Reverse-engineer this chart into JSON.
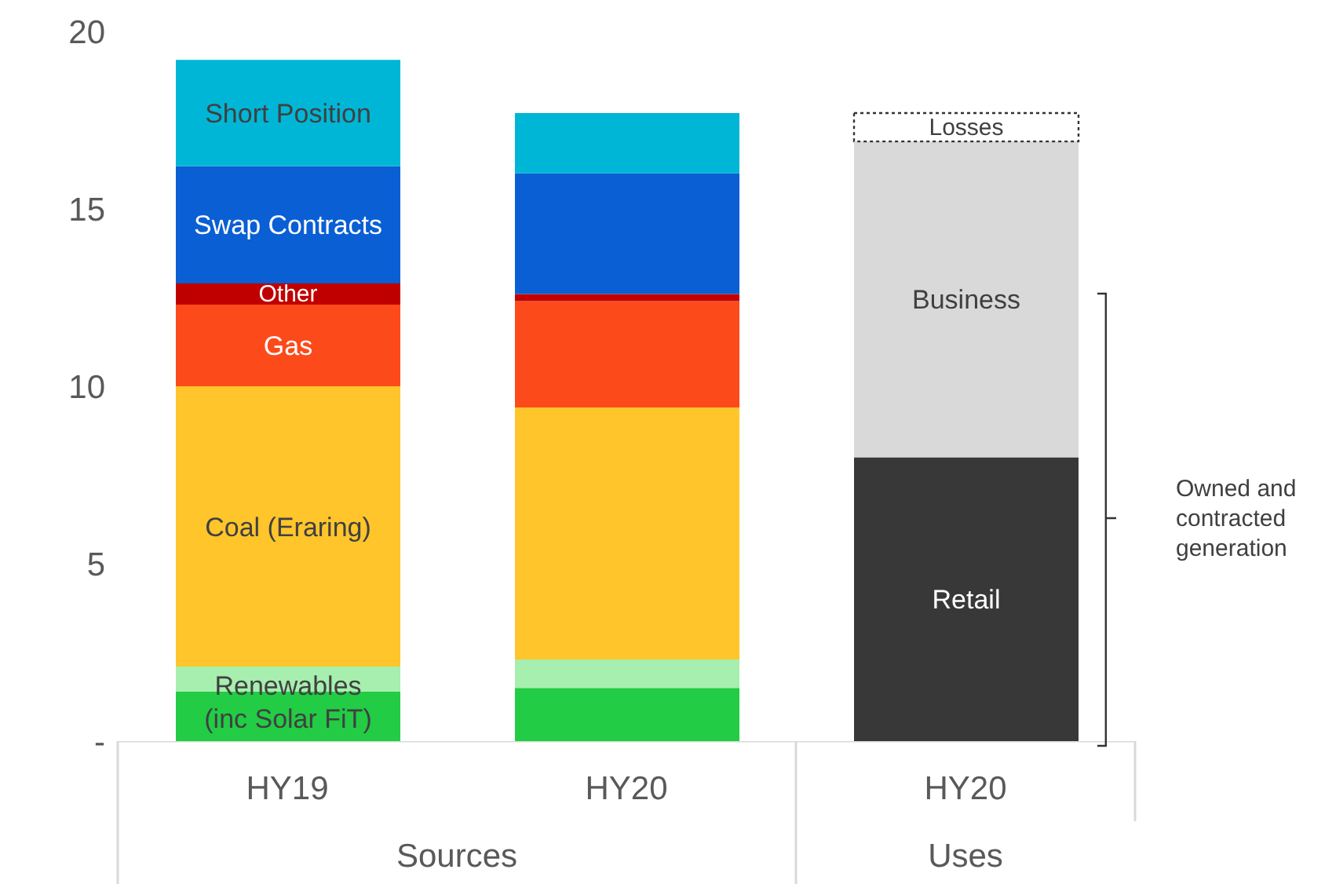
{
  "chart_data": {
    "type": "bar",
    "stacked": true,
    "categories": [
      "HY19",
      "HY20",
      "HY20"
    ],
    "ylim": [
      0,
      20
    ],
    "yticks": [
      {
        "value": 0,
        "label": "-"
      },
      5,
      10,
      15,
      20
    ],
    "series": [
      {
        "name": "Renewables (inc Solar FiT)",
        "color": "#22cc44",
        "values": [
          1.4,
          1.5,
          null
        ]
      },
      {
        "color": "#a6efae",
        "values": [
          0.7,
          0.8,
          null
        ]
      },
      {
        "name": "Coal (Eraring)",
        "color": "#ffc52b",
        "values": [
          7.9,
          7.1,
          null
        ]
      },
      {
        "name": "Gas",
        "color": "#fc4a1a",
        "values": [
          2.3,
          3.0,
          null
        ]
      },
      {
        "name": "Other",
        "color": "#c00000",
        "values": [
          0.6,
          0.2,
          null
        ]
      },
      {
        "name": "Swap Contracts",
        "color": "#0a5fd4",
        "values": [
          3.3,
          3.4,
          null
        ]
      },
      {
        "name": "Short Position",
        "color": "#00b6d6",
        "values": [
          3.0,
          1.7,
          null
        ]
      },
      {
        "name": "Retail",
        "color": "#383838",
        "values": [
          null,
          null,
          8.0
        ]
      },
      {
        "name": "Business",
        "color": "#d9d9d9",
        "values": [
          null,
          null,
          8.9
        ]
      },
      {
        "name": "Losses",
        "color": "#ffffff",
        "line_style": "dotted",
        "values": [
          null,
          null,
          0.8
        ]
      }
    ],
    "annotations": [
      "Sources",
      "Uses",
      "Owned and contracted generation"
    ]
  }
}
